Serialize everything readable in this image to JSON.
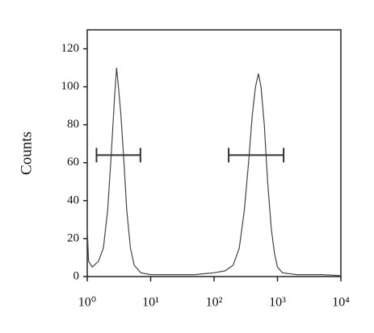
{
  "chart_data": {
    "type": "line",
    "ylabel": "Counts",
    "xscale": "log",
    "color": "#444",
    "x": [
      1.0,
      1.05,
      1.2,
      1.5,
      1.8,
      2.1,
      2.4,
      2.7,
      2.9,
      3.1,
      3.4,
      3.8,
      4.2,
      4.8,
      5.5,
      7,
      10,
      20,
      50,
      100,
      150,
      200,
      250,
      300,
      350,
      400,
      450,
      500,
      550,
      620,
      700,
      800,
      900,
      1000,
      1200,
      2000,
      5000,
      10000
    ],
    "values": [
      25,
      8,
      5,
      8,
      15,
      35,
      65,
      95,
      110,
      100,
      85,
      60,
      35,
      15,
      6,
      2,
      1,
      1,
      1,
      2,
      3,
      6,
      15,
      35,
      60,
      85,
      100,
      107,
      100,
      80,
      50,
      25,
      12,
      5,
      2,
      1,
      1,
      0.5
    ],
    "xlim": [
      1,
      10000
    ],
    "xticks": [
      {
        "value": 1,
        "label": "10⁰"
      },
      {
        "value": 10,
        "label": "10¹"
      },
      {
        "value": 100,
        "label": "10²"
      },
      {
        "value": 1000,
        "label": "10³"
      },
      {
        "value": 10000,
        "label": "10⁴"
      }
    ],
    "ylim": [
      0,
      130
    ],
    "yticks": [
      0,
      20,
      40,
      60,
      80,
      100,
      120
    ],
    "gates": [
      {
        "x": [
          1.4,
          6.9
        ],
        "y": 64
      },
      {
        "x": [
          170,
          1250
        ],
        "y": 64
      }
    ]
  }
}
